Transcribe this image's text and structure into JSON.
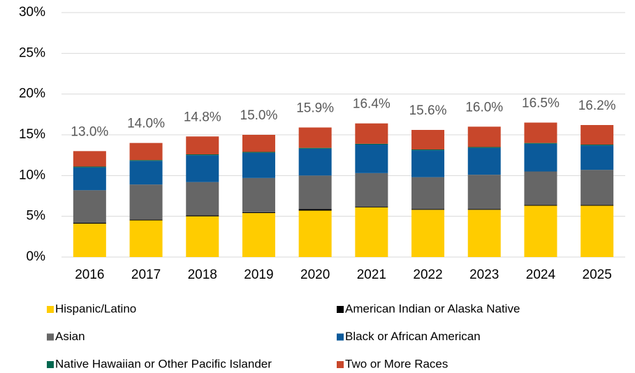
{
  "chart_data": {
    "type": "stacked_bar",
    "categories": [
      "2016",
      "2017",
      "2018",
      "2019",
      "2020",
      "2021",
      "2022",
      "2023",
      "2024",
      "2025"
    ],
    "series": [
      {
        "name": "Hispanic/Latino",
        "color": "#FFCC00",
        "values": [
          4.1,
          4.5,
          5.0,
          5.4,
          5.7,
          6.1,
          5.8,
          5.8,
          6.3,
          6.3
        ]
      },
      {
        "name": "American Indian or Alaska Native",
        "color": "#000000",
        "values": [
          0.1,
          0.1,
          0.1,
          0.1,
          0.2,
          0.1,
          0.1,
          0.1,
          0.1,
          0.1
        ]
      },
      {
        "name": "Asian",
        "color": "#666666",
        "values": [
          4.0,
          4.3,
          4.1,
          4.2,
          4.1,
          4.1,
          3.9,
          4.2,
          4.1,
          4.3
        ]
      },
      {
        "name": "Black or African American",
        "color": "#0B5A9A",
        "values": [
          2.8,
          2.9,
          3.3,
          3.1,
          3.3,
          3.5,
          3.3,
          3.3,
          3.4,
          3.0
        ]
      },
      {
        "name": "Native Hawaiian or Other Pacific Islander",
        "color": "#00674F",
        "values": [
          0.1,
          0.1,
          0.1,
          0.1,
          0.1,
          0.1,
          0.1,
          0.1,
          0.1,
          0.1
        ]
      },
      {
        "name": "Two or More Races",
        "color": "#C8472B",
        "values": [
          1.9,
          2.1,
          2.2,
          2.1,
          2.5,
          2.5,
          2.4,
          2.5,
          2.5,
          2.4
        ]
      }
    ],
    "totals": {
      "values": [
        13.0,
        14.0,
        14.8,
        15.0,
        15.9,
        16.4,
        15.6,
        16.0,
        16.5,
        16.2
      ],
      "value_labels": [
        "13.0%",
        "14.0%",
        "14.8%",
        "15.0%",
        "15.9%",
        "16.4%",
        "15.6%",
        "16.0%",
        "16.5%",
        "16.2%"
      ]
    },
    "ylim": [
      0,
      30
    ],
    "yticks": [
      {
        "value": 0,
        "label": "0%"
      },
      {
        "value": 5,
        "label": "5%"
      },
      {
        "value": 10,
        "label": "10%"
      },
      {
        "value": 15,
        "label": "15%"
      },
      {
        "value": 20,
        "label": "20%"
      },
      {
        "value": 25,
        "label": "25%"
      },
      {
        "value": 30,
        "label": "30%"
      }
    ],
    "grid": true,
    "legend": "bottom"
  }
}
